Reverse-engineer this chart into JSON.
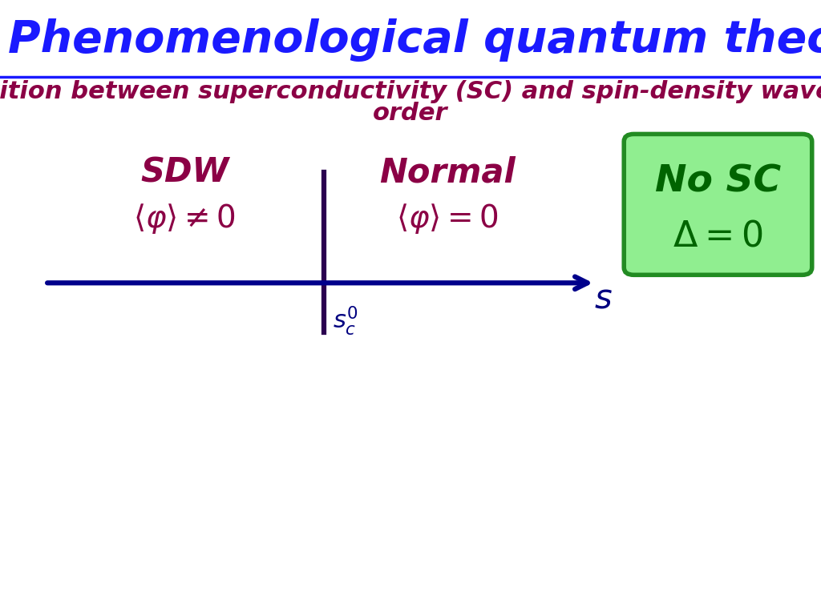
{
  "title": "Phenomenological quantum theory of competing order",
  "subtitle_line1": "Competition between superconductivity (SC) and spin-density wave (SDW)",
  "subtitle_line2": "order",
  "title_color": "#1a1aff",
  "subtitle_color": "#8b0045",
  "title_fontsize": 40,
  "subtitle_fontsize": 22,
  "bg_color": "#ffffff",
  "line_color": "#00008b",
  "vline_color": "#2b0050",
  "sdw_label": "SDW",
  "normal_label": "Normal",
  "sc_label_line1": "No SC",
  "sc_box_color": "#228b22",
  "sc_box_fill": "#90ee90",
  "sc_label_color": "#006400",
  "label_color": "#8b0045",
  "label_fontsize": 30,
  "eq_fontsize": 28
}
